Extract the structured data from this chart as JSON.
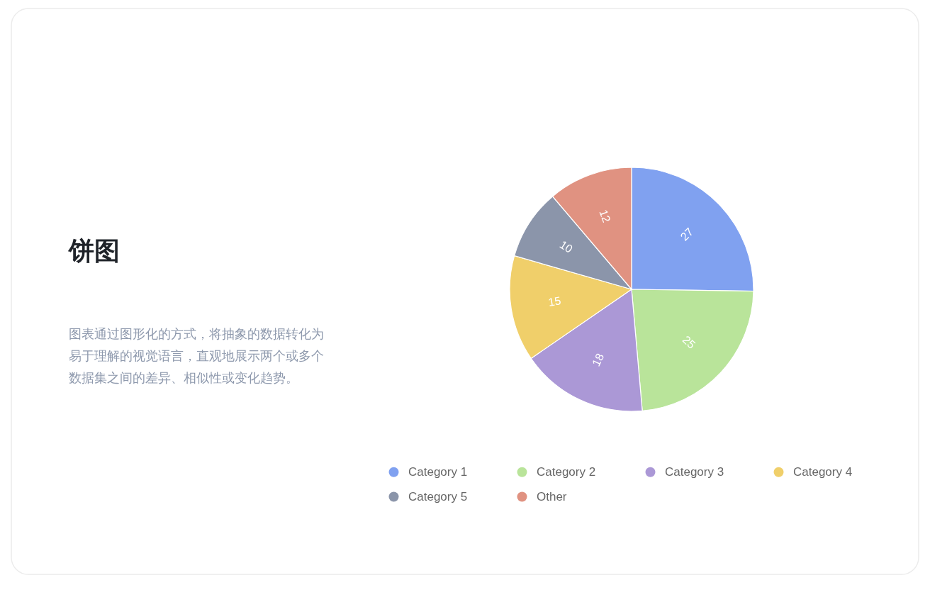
{
  "chart_data": {
    "type": "pie",
    "title": "饼图",
    "subtitle": "图表通过图形化的方式，将抽象的数据转化为易于理解的视觉语言，直观地展示两个或多个数据集之间的差异、相似性或变化趋势。",
    "categories": [
      "Category 1",
      "Category 2",
      "Category 3",
      "Category 4",
      "Category 5",
      "Other"
    ],
    "values": [
      27,
      25,
      18,
      15,
      10,
      12
    ],
    "colors": [
      "#80a1f0",
      "#b9e49a",
      "#ab98d6",
      "#f0cf6a",
      "#8b95aa",
      "#e09281"
    ],
    "data_labels": true,
    "legend": "bottom"
  }
}
